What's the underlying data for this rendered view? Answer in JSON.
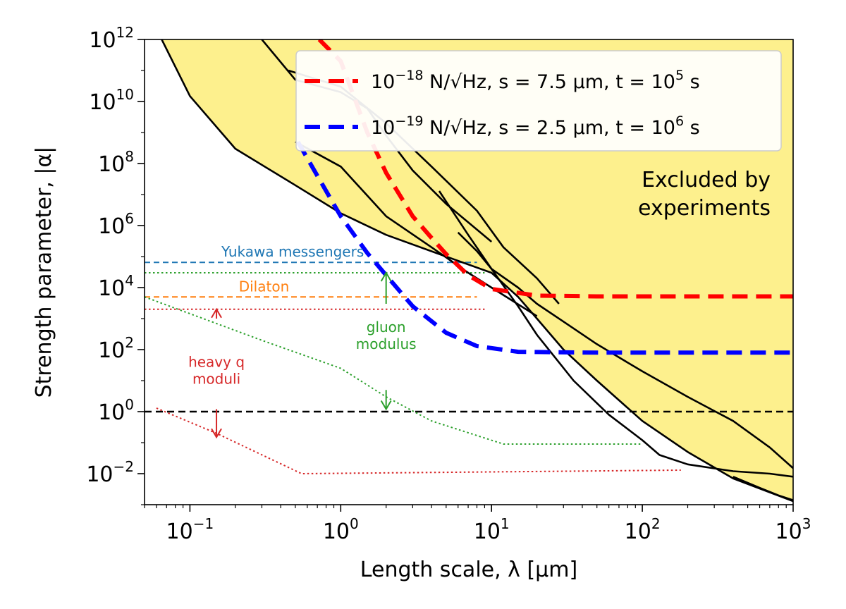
{
  "chart_data": {
    "type": "line",
    "x_scale": "log",
    "y_scale": "log",
    "xlim": [
      0.05,
      1000
    ],
    "ylim": [
      0.001,
      1000000000000.0
    ],
    "xlabel": "Length scale, λ [μm]",
    "ylabel": "Strength parameter, |α|",
    "x_ticks": [
      {
        "value": 0.1,
        "base": "10",
        "exp": "−1"
      },
      {
        "value": 1,
        "base": "10",
        "exp": "0"
      },
      {
        "value": 10,
        "base": "10",
        "exp": "1"
      },
      {
        "value": 100,
        "base": "10",
        "exp": "2"
      },
      {
        "value": 1000,
        "base": "10",
        "exp": "3"
      }
    ],
    "y_ticks": [
      {
        "value": 0.01,
        "base": "10",
        "exp": "−2"
      },
      {
        "value": 1,
        "base": "10",
        "exp": "0"
      },
      {
        "value": 100,
        "base": "10",
        "exp": "2"
      },
      {
        "value": 10000,
        "base": "10",
        "exp": "4"
      },
      {
        "value": 1000000,
        "base": "10",
        "exp": "6"
      },
      {
        "value": 100000000,
        "base": "10",
        "exp": "8"
      },
      {
        "value": 10000000000,
        "base": "10",
        "exp": "10"
      },
      {
        "value": 1000000000000,
        "base": "10",
        "exp": "12"
      }
    ],
    "excluded_region": {
      "label": "Excluded by\nexperiments",
      "color": "#fdf08d",
      "boundary": [
        [
          0.065,
          1000000000000.0
        ],
        [
          0.1,
          15000000000.0
        ],
        [
          0.2,
          300000000.0
        ],
        [
          0.5,
          20000000.0
        ],
        [
          1,
          2500000.0
        ],
        [
          2,
          500000.0
        ],
        [
          5,
          100000.0
        ],
        [
          10,
          30000.0
        ],
        [
          15,
          5000
        ],
        [
          20,
          1000
        ],
        [
          30,
          100
        ],
        [
          50,
          10
        ],
        [
          100,
          0.5
        ],
        [
          200,
          0.05
        ],
        [
          400,
          0.007
        ],
        [
          700,
          0.0025
        ],
        [
          1000,
          0.0013
        ]
      ]
    },
    "constraint_curves": [
      {
        "points": [
          [
            0.065,
            1000000000000.0
          ],
          [
            0.1,
            15000000000.0
          ],
          [
            0.2,
            300000000.0
          ],
          [
            0.5,
            20000000.0
          ],
          [
            1,
            2500000.0
          ],
          [
            2,
            500000.0
          ],
          [
            5,
            100000.0
          ],
          [
            10,
            30000.0
          ],
          [
            15,
            5000
          ],
          [
            20,
            1000
          ],
          [
            30,
            100
          ],
          [
            50,
            10
          ],
          [
            100,
            0.5
          ],
          [
            200,
            0.05
          ],
          [
            400,
            0.007
          ],
          [
            700,
            0.0025
          ],
          [
            1000,
            0.0013
          ]
        ]
      },
      {
        "points": [
          [
            0.5,
            500000000.0
          ],
          [
            1,
            80000000.0
          ],
          [
            2,
            2000000.0
          ],
          [
            4,
            200000.0
          ],
          [
            7,
            30000.0
          ],
          [
            10,
            10000.0
          ],
          [
            20,
            1200
          ]
        ]
      },
      {
        "points": [
          [
            0.3,
            1000000000000.0
          ],
          [
            0.5,
            50000000000.0
          ],
          [
            1,
            20000000000.0
          ],
          [
            1.5,
            6000000000.0
          ],
          [
            2,
            800000000.0
          ],
          [
            3,
            60000000.0
          ],
          [
            5,
            5000000.0
          ],
          [
            10,
            300000.0
          ]
        ]
      },
      {
        "points": [
          [
            0.45,
            100000000000.0
          ],
          [
            1,
            30000000000.0
          ],
          [
            2,
            2000000000.0
          ],
          [
            4,
            80000000.0
          ],
          [
            8,
            3000000.0
          ],
          [
            12,
            200000.0
          ],
          [
            20,
            20000.0
          ],
          [
            28,
            3000
          ]
        ]
      },
      {
        "points": [
          [
            4.5,
            13000000.0
          ],
          [
            7,
            500000.0
          ],
          [
            10,
            40000.0
          ],
          [
            15,
            2500
          ],
          [
            20,
            300
          ],
          [
            35,
            10
          ],
          [
            60,
            0.8
          ],
          [
            100,
            0.12
          ],
          [
            130,
            0.04
          ],
          [
            200,
            0.02
          ],
          [
            400,
            0.012
          ],
          [
            700,
            0.01
          ],
          [
            1000,
            0.008
          ]
        ]
      },
      {
        "points": [
          [
            400,
            0.008
          ],
          [
            600,
            0.0035
          ],
          [
            800,
            0.002
          ],
          [
            1000,
            0.0014
          ]
        ]
      },
      {
        "points": [
          [
            6,
            600000.0
          ],
          [
            8,
            150000.0
          ],
          [
            10,
            40000.0
          ],
          [
            15,
            10000.0
          ],
          [
            20,
            3000
          ],
          [
            30,
            800
          ],
          [
            50,
            150
          ],
          [
            100,
            20
          ],
          [
            200,
            3
          ],
          [
            400,
            0.5
          ],
          [
            700,
            0.07
          ],
          [
            1000,
            0.015
          ]
        ]
      }
    ],
    "series": [
      {
        "name": "10^{−18} N/√Hz, s = 7.5 μm, t = 10^5 s",
        "color": "#ff0000",
        "points": [
          [
            0.72,
            1000000000000.0
          ],
          [
            1,
            200000000000.0
          ],
          [
            1.5,
            1000000000.0
          ],
          [
            2,
            50000000.0
          ],
          [
            3,
            2000000.0
          ],
          [
            4,
            400000.0
          ],
          [
            5,
            120000.0
          ],
          [
            7,
            25000.0
          ],
          [
            10,
            9000
          ],
          [
            20,
            5500
          ],
          [
            50,
            5200
          ],
          [
            100,
            5200
          ],
          [
            1000,
            5200
          ]
        ]
      },
      {
        "name": "10^{−19} N/√Hz, s = 2.5 μm, t = 10^6 s",
        "color": "#0000ff",
        "points": [
          [
            0.52,
            500000000.0
          ],
          [
            0.7,
            40000000.0
          ],
          [
            1,
            2000000.0
          ],
          [
            1.5,
            130000.0
          ],
          [
            2,
            25000.0
          ],
          [
            3,
            2500
          ],
          [
            5,
            350
          ],
          [
            8,
            130
          ],
          [
            15,
            85
          ],
          [
            50,
            80
          ],
          [
            100,
            80
          ],
          [
            1000,
            80
          ]
        ]
      }
    ],
    "reference_lines": [
      {
        "label": "Yukawa messengers",
        "color": "#1f77b4",
        "style": "dashed",
        "y": 65000,
        "x": [
          0.05,
          8
        ]
      },
      {
        "label": "Dilaton",
        "color": "#ff7f0e",
        "style": "dashed",
        "y": 5000,
        "x": [
          0.05,
          8
        ]
      },
      {
        "label": "",
        "color": "#000000",
        "style": "dashed",
        "y": 1,
        "x": [
          0.05,
          1000
        ]
      },
      {
        "label": "",
        "color": "#2ca02c",
        "style": "dotted",
        "points": [
          [
            0.05,
            30000
          ],
          [
            9,
            30000
          ]
        ]
      },
      {
        "label": "",
        "color": "#2ca02c",
        "style": "dotted",
        "points": [
          [
            0.05,
            5000
          ],
          [
            0.3,
            200
          ],
          [
            1,
            25
          ],
          [
            2,
            3
          ],
          [
            4,
            0.5
          ],
          [
            12,
            0.09
          ],
          [
            100,
            0.09
          ]
        ]
      },
      {
        "label": "",
        "color": "#d62728",
        "style": "dotted",
        "points": [
          [
            0.05,
            2000
          ],
          [
            9,
            2000
          ]
        ]
      },
      {
        "label": "",
        "color": "#d62728",
        "style": "dotted",
        "points": [
          [
            0.06,
            1.3
          ],
          [
            0.15,
            0.2
          ],
          [
            0.55,
            0.01
          ],
          [
            180,
            0.013
          ]
        ]
      }
    ],
    "annotations": [
      {
        "text": "Yukawa messengers",
        "color": "#1f77b4",
        "x": 0.48,
        "y": 100000
      },
      {
        "text": "Dilaton",
        "color": "#ff7f0e",
        "x": 0.31,
        "y": 7500
      },
      {
        "text": "gluon\nmodulus",
        "color": "#2ca02c",
        "x": 2.0,
        "y": 200
      },
      {
        "text": "heavy q\nmoduli",
        "color": "#d62728",
        "x": 0.15,
        "y": 15
      }
    ],
    "arrows": [
      {
        "color": "#2ca02c",
        "x": 2.0,
        "from": 3000,
        "to": 30000
      },
      {
        "color": "#2ca02c",
        "x": 2.0,
        "from": 5,
        "to": 1.2
      },
      {
        "color": "#d62728",
        "x": 0.15,
        "from": 1000,
        "to": 2000
      },
      {
        "color": "#d62728",
        "x": 0.15,
        "from": 1.2,
        "to": 0.15
      }
    ],
    "legend_placement": "upper right",
    "grid": false
  }
}
